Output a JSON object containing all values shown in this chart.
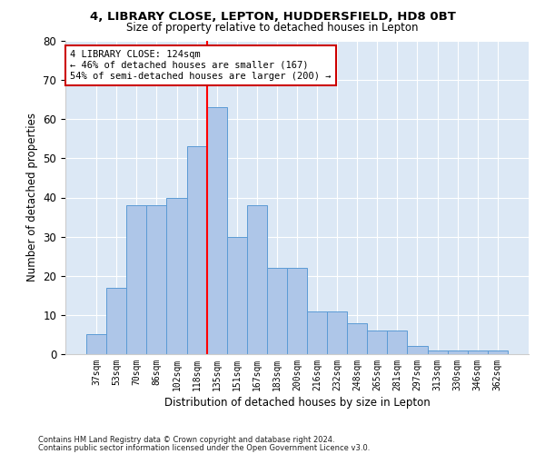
{
  "title1": "4, LIBRARY CLOSE, LEPTON, HUDDERSFIELD, HD8 0BT",
  "title2": "Size of property relative to detached houses in Lepton",
  "xlabel": "Distribution of detached houses by size in Lepton",
  "ylabel": "Number of detached properties",
  "categories": [
    "37sqm",
    "53sqm",
    "70sqm",
    "86sqm",
    "102sqm",
    "118sqm",
    "135sqm",
    "151sqm",
    "167sqm",
    "183sqm",
    "200sqm",
    "216sqm",
    "232sqm",
    "248sqm",
    "265sqm",
    "281sqm",
    "297sqm",
    "313sqm",
    "330sqm",
    "346sqm",
    "362sqm"
  ],
  "values": [
    5,
    17,
    38,
    38,
    40,
    53,
    63,
    30,
    38,
    22,
    22,
    11,
    11,
    8,
    6,
    6,
    2,
    1,
    1,
    1,
    1
  ],
  "bar_color": "#aec6e8",
  "bar_edge_color": "#5b9bd5",
  "bg_color": "#dce8f5",
  "annotation_title": "4 LIBRARY CLOSE: 124sqm",
  "annotation_line1": "← 46% of detached houses are smaller (167)",
  "annotation_line2": "54% of semi-detached houses are larger (200) →",
  "annotation_box_color": "#cc0000",
  "ylim": [
    0,
    80
  ],
  "yticks": [
    0,
    10,
    20,
    30,
    40,
    50,
    60,
    70,
    80
  ],
  "footnote1": "Contains HM Land Registry data © Crown copyright and database right 2024.",
  "footnote2": "Contains public sector information licensed under the Open Government Licence v3.0."
}
